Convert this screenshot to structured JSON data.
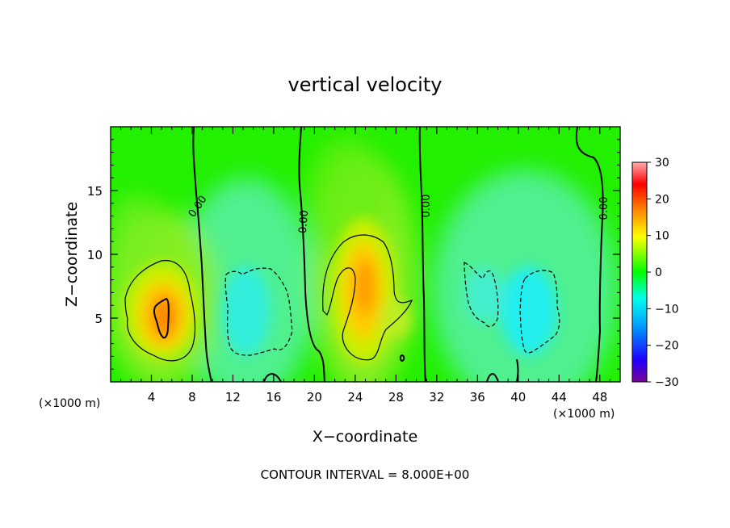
{
  "chart_data": {
    "type": "heatmap",
    "title": "vertical velocity",
    "xlabel": "X−coordinate",
    "ylabel": "Z−coordinate",
    "x_unit_left": "(×1000 m)",
    "x_unit_right": "(×1000 m)",
    "footer": "CONTOUR INTERVAL = 8.000E+00",
    "xlim": [
      0,
      50
    ],
    "ylim": [
      0,
      20
    ],
    "x_ticks": [
      4,
      8,
      12,
      16,
      20,
      24,
      28,
      32,
      36,
      40,
      44,
      48
    ],
    "x_tick_labels": [
      "4",
      "8",
      "12",
      "16",
      "20",
      "24",
      "28",
      "32",
      "36",
      "40",
      "44",
      "48"
    ],
    "y_ticks": [
      5,
      10,
      15
    ],
    "y_tick_labels": [
      "5",
      "10",
      "15"
    ],
    "colorbar": {
      "range": [
        -30,
        30
      ],
      "ticks": [
        30,
        20,
        10,
        0,
        -10,
        -20,
        -30
      ],
      "tick_labels": [
        "30",
        "20",
        "10",
        "0",
        "−10",
        "−20",
        "−30"
      ],
      "colors": [
        "#7b0099",
        "#1f00ff",
        "#0099ff",
        "#00ffee",
        "#00ff00",
        "#ffff00",
        "#ff8800",
        "#ff0000",
        "#ffaaaa"
      ]
    },
    "contour_labels": [
      {
        "text": "0.00",
        "x": 9.3,
        "z": 13.5
      },
      {
        "text": "0.00",
        "x": 19.4,
        "z": 12.5
      },
      {
        "text": "0.00",
        "x": 31.0,
        "z": 14.3
      },
      {
        "text": "0.00",
        "x": 48.0,
        "z": 13.5
      }
    ],
    "features": [
      {
        "kind": "updraft",
        "x": 5.2,
        "z": 5.5,
        "peak": 24
      },
      {
        "kind": "downdraft",
        "x": 14.0,
        "z": 5.5,
        "peak": -7
      },
      {
        "kind": "updraft",
        "x": 24.8,
        "z": 7.5,
        "peak": 18
      },
      {
        "kind": "downdraft",
        "x": 40.5,
        "z": 6.0,
        "peak": -9
      }
    ]
  }
}
